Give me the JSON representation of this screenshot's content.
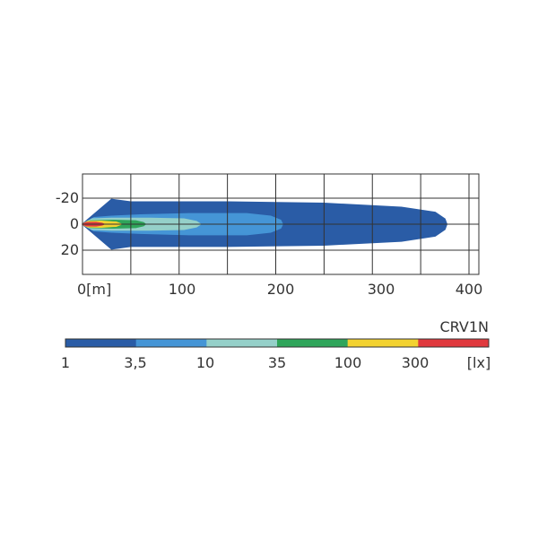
{
  "chart_data": {
    "type": "heatmap",
    "xlim": [
      0,
      400
    ],
    "ylim": [
      -20,
      20
    ],
    "x_ticks": [
      "0[m]",
      "100",
      "200",
      "300",
      "400"
    ],
    "y_ticks": [
      "-20",
      "0",
      "20"
    ],
    "grid": true,
    "model": "CRV1N",
    "unit": "[lx]",
    "legend_levels": [
      "1",
      "3,5",
      "10",
      "35",
      "100",
      "300"
    ],
    "colors": [
      "#2a5ca6",
      "#4595d6",
      "#95d0c9",
      "#2fa55a",
      "#f3d230",
      "#e0393e"
    ],
    "contours": [
      {
        "level": "1",
        "color": "#2a5ca6",
        "points": [
          [
            0,
            0
          ],
          [
            30,
            -19
          ],
          [
            50,
            -17
          ],
          [
            150,
            -17
          ],
          [
            250,
            -16
          ],
          [
            330,
            -13
          ],
          [
            365,
            -9
          ],
          [
            375,
            -4
          ],
          [
            377,
            0
          ],
          [
            375,
            4
          ],
          [
            365,
            9
          ],
          [
            330,
            13
          ],
          [
            250,
            16
          ],
          [
            150,
            17
          ],
          [
            50,
            17
          ],
          [
            30,
            19
          ]
        ]
      },
      {
        "level": "3,5",
        "color": "#4595d6",
        "points": [
          [
            0,
            0
          ],
          [
            12,
            -5
          ],
          [
            30,
            -6
          ],
          [
            60,
            -7
          ],
          [
            110,
            -8
          ],
          [
            170,
            -8
          ],
          [
            195,
            -6
          ],
          [
            205,
            -3
          ],
          [
            207,
            0
          ],
          [
            205,
            3
          ],
          [
            195,
            6
          ],
          [
            170,
            8
          ],
          [
            110,
            8
          ],
          [
            60,
            7
          ],
          [
            30,
            6
          ],
          [
            12,
            5
          ]
        ]
      },
      {
        "level": "10",
        "color": "#95d0c9",
        "points": [
          [
            0,
            0
          ],
          [
            10,
            -4
          ],
          [
            30,
            -4.5
          ],
          [
            70,
            -4.5
          ],
          [
            105,
            -4
          ],
          [
            118,
            -2
          ],
          [
            122,
            0
          ],
          [
            118,
            2
          ],
          [
            105,
            4
          ],
          [
            70,
            4.5
          ],
          [
            30,
            4.5
          ],
          [
            10,
            4
          ]
        ]
      },
      {
        "level": "35",
        "color": "#2fa55a",
        "points": [
          [
            0,
            0
          ],
          [
            8,
            -2.5
          ],
          [
            30,
            -3
          ],
          [
            55,
            -2.5
          ],
          [
            63,
            -1.2
          ],
          [
            65,
            0
          ],
          [
            63,
            1.2
          ],
          [
            55,
            2.5
          ],
          [
            30,
            3
          ],
          [
            8,
            2.5
          ]
        ]
      },
      {
        "level": "100",
        "color": "#f3d230",
        "points": [
          [
            0,
            0
          ],
          [
            5,
            -2
          ],
          [
            20,
            -2.2
          ],
          [
            35,
            -1.5
          ],
          [
            40,
            0
          ],
          [
            35,
            1.5
          ],
          [
            20,
            2.2
          ],
          [
            5,
            2
          ]
        ]
      },
      {
        "level": "300",
        "color": "#e0393e",
        "points": [
          [
            0,
            0
          ],
          [
            4,
            -1.2
          ],
          [
            14,
            -1.3
          ],
          [
            20,
            -0.6
          ],
          [
            22,
            0
          ],
          [
            20,
            0.6
          ],
          [
            14,
            1.3
          ],
          [
            4,
            1.2
          ]
        ]
      }
    ]
  }
}
